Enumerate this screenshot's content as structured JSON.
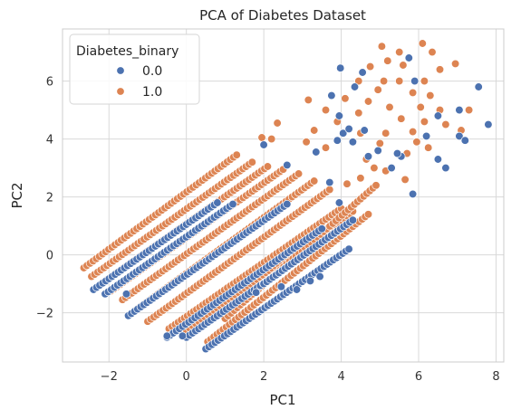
{
  "chart_data": {
    "type": "scatter",
    "title": "PCA of Diabetes Dataset",
    "xlabel": "PC1",
    "ylabel": "PC2",
    "xlim": [
      -3.2,
      8.2
    ],
    "ylim": [
      -3.7,
      7.8
    ],
    "xticks": [
      -2,
      0,
      2,
      4,
      6,
      8
    ],
    "yticks": [
      -2,
      0,
      2,
      4,
      6
    ],
    "grid": true,
    "legend": {
      "title": "Diabetes_binary",
      "placement": "top-left",
      "entries": [
        "0.0",
        "1.0"
      ]
    },
    "colors": {
      "0.0": "#4c72b0",
      "1.0": "#dd8452"
    },
    "bands": {
      "slope": 0.94,
      "step": 0.08,
      "orange_bands": [
        {
          "x0": -2.65,
          "y0": -0.45,
          "x1": 1.3,
          "y1": 3.45
        },
        {
          "x0": -2.45,
          "y0": -0.75,
          "x1": 1.7,
          "y1": 3.2
        },
        {
          "x0": -2.2,
          "y0": -1.0,
          "x1": 2.1,
          "y1": 3.05
        },
        {
          "x0": -1.95,
          "y0": -1.25,
          "x1": 2.5,
          "y1": 2.95
        },
        {
          "x0": -1.65,
          "y0": -1.55,
          "x1": 2.9,
          "y1": 2.8
        },
        {
          "x0": -1.3,
          "y0": -1.9,
          "x1": 3.3,
          "y1": 2.55
        },
        {
          "x0": -1.0,
          "y0": -2.3,
          "x1": 3.7,
          "y1": 2.25
        },
        {
          "x0": -0.45,
          "y0": -2.55,
          "x1": 4.0,
          "y1": 1.6
        },
        {
          "x0": 0.0,
          "y0": -2.6,
          "x1": 4.3,
          "y1": 1.5
        },
        {
          "x0": 0.55,
          "y0": -3.0,
          "x1": 4.7,
          "y1": 1.4
        },
        {
          "x0": 1.0,
          "y0": -2.2,
          "x1": 4.9,
          "y1": 2.4
        }
      ],
      "blue_bands": [
        {
          "x0": -2.4,
          "y0": -1.2,
          "x1": 0.8,
          "y1": 1.8
        },
        {
          "x0": -2.1,
          "y0": -1.35,
          "x1": 1.2,
          "y1": 1.75
        },
        {
          "x0": -1.5,
          "y0": -2.1,
          "x1": 2.6,
          "y1": 1.75
        },
        {
          "x0": -0.5,
          "y0": -2.85,
          "x1": 3.5,
          "y1": 0.9
        },
        {
          "x0": 0.0,
          "y0": -2.85,
          "x1": 3.9,
          "y1": 0.8
        },
        {
          "x0": 0.5,
          "y0": -3.25,
          "x1": 4.2,
          "y1": 0.2
        },
        {
          "x0": 2.0,
          "y0": -1.0,
          "x1": 4.3,
          "y1": 1.2
        }
      ]
    },
    "points_00": [
      [
        3.98,
        6.45
      ],
      [
        4.55,
        6.3
      ],
      [
        5.75,
        6.8
      ],
      [
        4.35,
        5.8
      ],
      [
        3.75,
        5.5
      ],
      [
        5.9,
        6.0
      ],
      [
        7.55,
        5.8
      ],
      [
        6.5,
        4.8
      ],
      [
        7.05,
        5.0
      ],
      [
        6.2,
        4.1
      ],
      [
        7.05,
        4.1
      ],
      [
        7.8,
        4.5
      ],
      [
        7.2,
        3.95
      ],
      [
        6.7,
        3.0
      ],
      [
        6.5,
        3.3
      ],
      [
        5.55,
        3.4
      ],
      [
        5.3,
        3.0
      ],
      [
        5.85,
        2.1
      ],
      [
        4.95,
        3.6
      ],
      [
        4.3,
        3.9
      ],
      [
        3.95,
        4.8
      ],
      [
        4.05,
        4.2
      ],
      [
        4.6,
        4.3
      ],
      [
        3.35,
        3.55
      ],
      [
        2.6,
        3.1
      ],
      [
        3.9,
        3.95
      ],
      [
        3.95,
        1.8
      ],
      [
        3.7,
        2.5
      ],
      [
        4.7,
        3.4
      ],
      [
        2.0,
        3.8
      ],
      [
        4.2,
        4.35
      ],
      [
        5.45,
        3.5
      ],
      [
        3.45,
        -0.75
      ],
      [
        3.2,
        -0.9
      ],
      [
        2.85,
        -1.2
      ],
      [
        2.45,
        -1.1
      ],
      [
        1.8,
        -1.3
      ],
      [
        -1.55,
        -1.35
      ],
      [
        -0.5,
        -2.8
      ],
      [
        -0.1,
        -2.8
      ]
    ],
    "points_10": [
      [
        5.05,
        7.2
      ],
      [
        5.5,
        7.0
      ],
      [
        6.1,
        7.3
      ],
      [
        6.35,
        7.0
      ],
      [
        6.95,
        6.6
      ],
      [
        5.2,
        6.7
      ],
      [
        5.6,
        6.55
      ],
      [
        4.75,
        6.5
      ],
      [
        6.55,
        6.4
      ],
      [
        4.45,
        6.0
      ],
      [
        5.1,
        6.0
      ],
      [
        5.5,
        6.0
      ],
      [
        6.15,
        6.0
      ],
      [
        4.95,
        5.7
      ],
      [
        5.85,
        5.6
      ],
      [
        6.3,
        5.5
      ],
      [
        4.1,
        5.4
      ],
      [
        4.7,
        5.3
      ],
      [
        3.15,
        5.35
      ],
      [
        5.25,
        5.1
      ],
      [
        6.05,
        5.1
      ],
      [
        6.55,
        5.0
      ],
      [
        7.3,
        5.0
      ],
      [
        3.6,
        5.0
      ],
      [
        4.45,
        4.9
      ],
      [
        5.55,
        4.7
      ],
      [
        6.15,
        4.6
      ],
      [
        3.9,
        4.6
      ],
      [
        2.35,
        4.55
      ],
      [
        4.5,
        4.2
      ],
      [
        5.15,
        4.2
      ],
      [
        5.85,
        4.25
      ],
      [
        6.7,
        4.5
      ],
      [
        7.1,
        4.3
      ],
      [
        3.3,
        4.3
      ],
      [
        5.95,
        3.9
      ],
      [
        5.0,
        3.85
      ],
      [
        6.25,
        3.7
      ],
      [
        5.7,
        3.5
      ],
      [
        4.65,
        3.3
      ],
      [
        5.65,
        2.6
      ],
      [
        4.15,
        2.45
      ],
      [
        4.85,
        3.0
      ],
      [
        5.15,
        2.9
      ],
      [
        4.5,
        2.65
      ],
      [
        2.2,
        4.0
      ],
      [
        1.95,
        4.05
      ],
      [
        3.1,
        3.9
      ],
      [
        3.6,
        3.7
      ]
    ]
  }
}
